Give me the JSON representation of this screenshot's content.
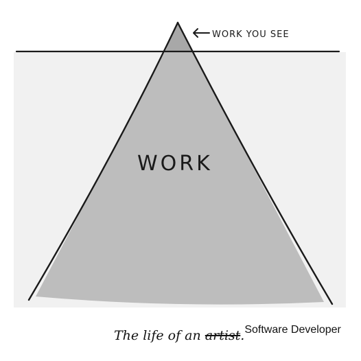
{
  "illustration": {
    "tip_label": "WORK YOU SEE",
    "body_label": "WORK",
    "colors": {
      "background": "#f1f1f1",
      "pyramid": "#bdbdbd",
      "tip": "#a8a8a8",
      "ink": "#1a1a1a"
    }
  },
  "caption": {
    "prefix": "The life of an ",
    "struck_word": "artist",
    "period": ".",
    "replacement": "Software Developer"
  }
}
